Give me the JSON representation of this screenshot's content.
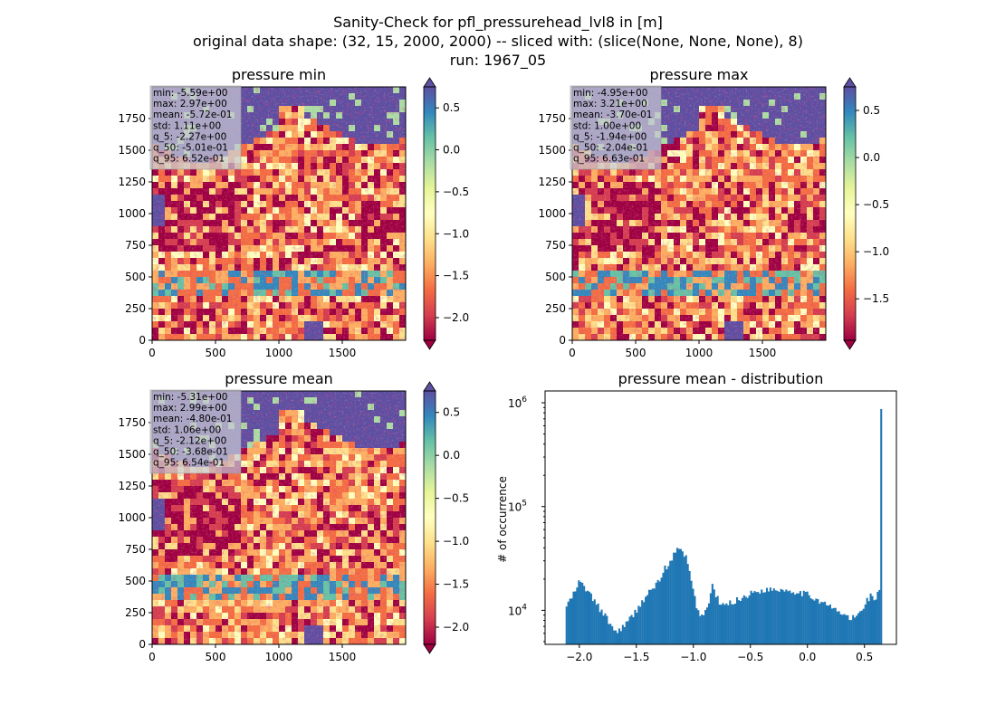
{
  "suptitle": {
    "line1": "Sanity-Check for pfl_pressurehead_lvl8 in [m]",
    "line2": "original data shape: (32, 15, 2000, 2000) -- sliced with: (slice(None, None, None), 8)",
    "line3": "run: 1967_05"
  },
  "colors": {
    "sea": "#5e4fa2",
    "histogram": "#1f77b4"
  },
  "panels": [
    {
      "title": "pressure min",
      "stats": [
        "min: -5.59e+00",
        "max: 2.97e+00",
        "mean: -5.72e-01",
        "std: 1.11e+00",
        "q_5: -2.27e+00",
        "q_50: -5.01e-01",
        "q_95: 6.52e-01"
      ],
      "colorbar": {
        "min": -2.27,
        "max": 0.75,
        "ticks": [
          0.5,
          0.0,
          -0.5,
          -1.0,
          -1.5,
          -2.0
        ],
        "labels": [
          "0.5",
          "0.0",
          "−0.5",
          "−1.0",
          "−1.5",
          "−2.0"
        ]
      }
    },
    {
      "title": "pressure max",
      "stats": [
        "min: -4.95e+00",
        "max: 3.21e+00",
        "mean: -3.70e-01",
        "std: 1.00e+00",
        "q_5: -1.94e+00",
        "q_50: -2.04e-01",
        "q_95: 6.63e-01"
      ],
      "colorbar": {
        "min": -1.94,
        "max": 0.75,
        "ticks": [
          0.5,
          0.0,
          -0.5,
          -1.0,
          -1.5
        ],
        "labels": [
          "0.5",
          "0.0",
          "−0.5",
          "−1.0",
          "−1.5"
        ]
      }
    },
    {
      "title": "pressure mean",
      "stats": [
        "min: -5.31e+00",
        "max: 2.99e+00",
        "mean: -4.80e-01",
        "std: 1.06e+00",
        "q_5: -2.12e+00",
        "q_50: -3.68e-01",
        "q_95: 6.54e-01"
      ],
      "colorbar": {
        "min": -2.2,
        "max": 0.75,
        "ticks": [
          0.5,
          0.0,
          -0.5,
          -1.0,
          -1.5,
          -2.0
        ],
        "labels": [
          "0.5",
          "0.0",
          "−0.5",
          "−1.0",
          "−1.5",
          "−2.0"
        ]
      }
    }
  ],
  "map_axes": {
    "x_ticks": [
      0,
      500,
      1000,
      1500
    ],
    "x_tick_labels": [
      "0",
      "500",
      "1000",
      "1500"
    ],
    "y_ticks": [
      0,
      250,
      500,
      750,
      1000,
      1250,
      1500,
      1750
    ],
    "y_tick_labels": [
      "0",
      "250",
      "500",
      "750",
      "1000",
      "1250",
      "1500",
      "1750"
    ],
    "xlim": [
      0,
      2000
    ],
    "ylim": [
      0,
      2000
    ]
  },
  "chart_data": {
    "type": "bar",
    "title": "pressure mean - distribution",
    "xlabel": "",
    "ylabel": "# of occurrence",
    "yscale": "log",
    "xlim": [
      -2.3,
      0.78
    ],
    "ylim": [
      4700,
      1300000
    ],
    "x_ticks": [
      -2.0,
      -1.5,
      -1.0,
      -0.5,
      0.0,
      0.5
    ],
    "x_tick_labels": [
      "−2.0",
      "−1.5",
      "−1.0",
      "−0.5",
      "0.0",
      "0.5"
    ],
    "y_ticks": [
      10000,
      100000,
      1000000
    ],
    "y_tick_base": "10",
    "y_tick_exponents": [
      "4",
      "5",
      "6"
    ],
    "bins": {
      "start": -2.12,
      "end": 0.654,
      "count": 180
    },
    "profile": [
      [
        -2.12,
        10800
      ],
      [
        -2.08,
        12500
      ],
      [
        -2.04,
        15000
      ],
      [
        -2.0,
        19000
      ],
      [
        -1.97,
        17500
      ],
      [
        -1.92,
        15000
      ],
      [
        -1.85,
        11500
      ],
      [
        -1.78,
        9000
      ],
      [
        -1.72,
        7200
      ],
      [
        -1.68,
        6100
      ],
      [
        -1.63,
        6800
      ],
      [
        -1.58,
        7600
      ],
      [
        -1.5,
        10000
      ],
      [
        -1.42,
        13500
      ],
      [
        -1.35,
        16500
      ],
      [
        -1.28,
        21000
      ],
      [
        -1.22,
        25000
      ],
      [
        -1.17,
        32000
      ],
      [
        -1.14,
        38000
      ],
      [
        -1.1,
        36000
      ],
      [
        -1.06,
        30000
      ],
      [
        -1.03,
        22000
      ],
      [
        -0.99,
        13500
      ],
      [
        -0.96,
        9800
      ],
      [
        -0.92,
        8800
      ],
      [
        -0.88,
        10500
      ],
      [
        -0.85,
        14000
      ],
      [
        -0.83,
        16500
      ],
      [
        -0.8,
        14000
      ],
      [
        -0.76,
        11000
      ],
      [
        -0.7,
        11500
      ],
      [
        -0.6,
        12800
      ],
      [
        -0.5,
        14500
      ],
      [
        -0.4,
        15600
      ],
      [
        -0.3,
        16000
      ],
      [
        -0.2,
        15800
      ],
      [
        -0.1,
        15200
      ],
      [
        0.0,
        14200
      ],
      [
        0.1,
        12500
      ],
      [
        0.2,
        10800
      ],
      [
        0.3,
        9300
      ],
      [
        0.38,
        8300
      ],
      [
        0.43,
        8700
      ],
      [
        0.48,
        10200
      ],
      [
        0.52,
        12500
      ],
      [
        0.56,
        14000
      ],
      [
        0.6,
        12800
      ],
      [
        0.63,
        16000
      ],
      [
        0.642,
        22000
      ],
      [
        0.648,
        35000
      ],
      [
        0.654,
        870000
      ]
    ],
    "spikes": [
      [
        -1.255,
        27000
      ],
      [
        -1.2,
        30000
      ],
      [
        -1.165,
        36000
      ],
      [
        -1.14,
        40000
      ],
      [
        -1.11,
        39000
      ],
      [
        -1.07,
        34000
      ],
      [
        -1.05,
        28000
      ],
      [
        -0.83,
        18000
      ]
    ]
  }
}
